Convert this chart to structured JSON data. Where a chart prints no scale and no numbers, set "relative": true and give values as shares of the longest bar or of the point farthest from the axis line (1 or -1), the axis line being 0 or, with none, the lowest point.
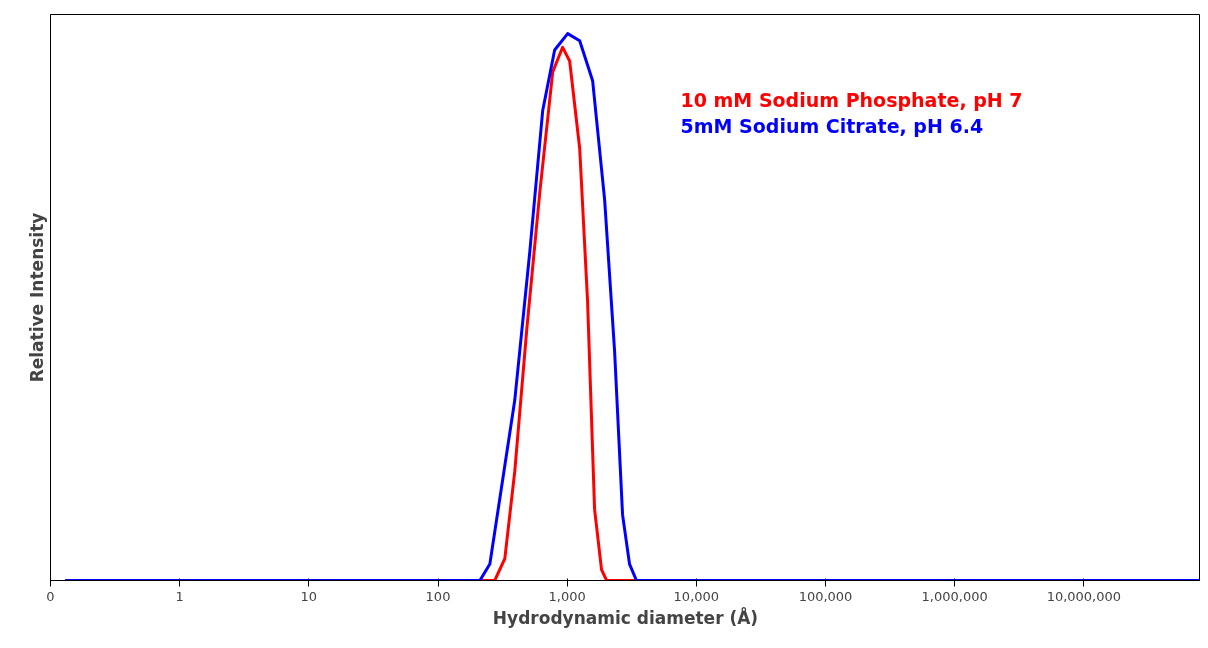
{
  "chart_data": {
    "type": "line",
    "relative": true,
    "log": "x",
    "xlabel": "Hydrodynamic diameter (Å)",
    "ylabel": "Relative Intensity",
    "xlim": [
      0.1,
      80000000
    ],
    "xticks": [
      {
        "value": 0.1,
        "label": "0"
      },
      1,
      10,
      100,
      {
        "value": 1000,
        "label": "1,000"
      },
      {
        "value": 10000,
        "label": "10,000"
      },
      {
        "value": 100000,
        "label": "100,000"
      },
      {
        "value": 1000000,
        "label": "1,000,000"
      },
      {
        "value": 10000000,
        "label": "10,000,000"
      }
    ],
    "grid": false,
    "line_style": "solid",
    "marker": "none",
    "series": [
      {
        "name": "10 mM Sodium Phosphate, pH 7",
        "color": "#ff0000",
        "x": [
          0.13,
          275,
          329,
          393,
          487,
          614,
          773,
          922,
          1045,
          1250,
          1439,
          1630,
          1845,
          2018,
          80000000
        ],
        "values": [
          0,
          0,
          0.04,
          0.2,
          0.46,
          0.71,
          0.93,
          0.975,
          0.95,
          0.79,
          0.51,
          0.13,
          0.02,
          0,
          0
        ]
      },
      {
        "name": "5mM Sodium Citrate, pH 6.4",
        "color": "#0000ff",
        "x": [
          0.13,
          211,
          252,
          301,
          393,
          513,
          647,
          800,
          1009,
          1250,
          1574,
          1950,
          2328,
          2685,
          3040,
          3440,
          80000000
        ],
        "values": [
          0,
          0,
          0.03,
          0.15,
          0.33,
          0.6,
          0.86,
          0.97,
          1.0,
          0.987,
          0.914,
          0.696,
          0.42,
          0.12,
          0.03,
          0,
          0
        ]
      }
    ]
  }
}
